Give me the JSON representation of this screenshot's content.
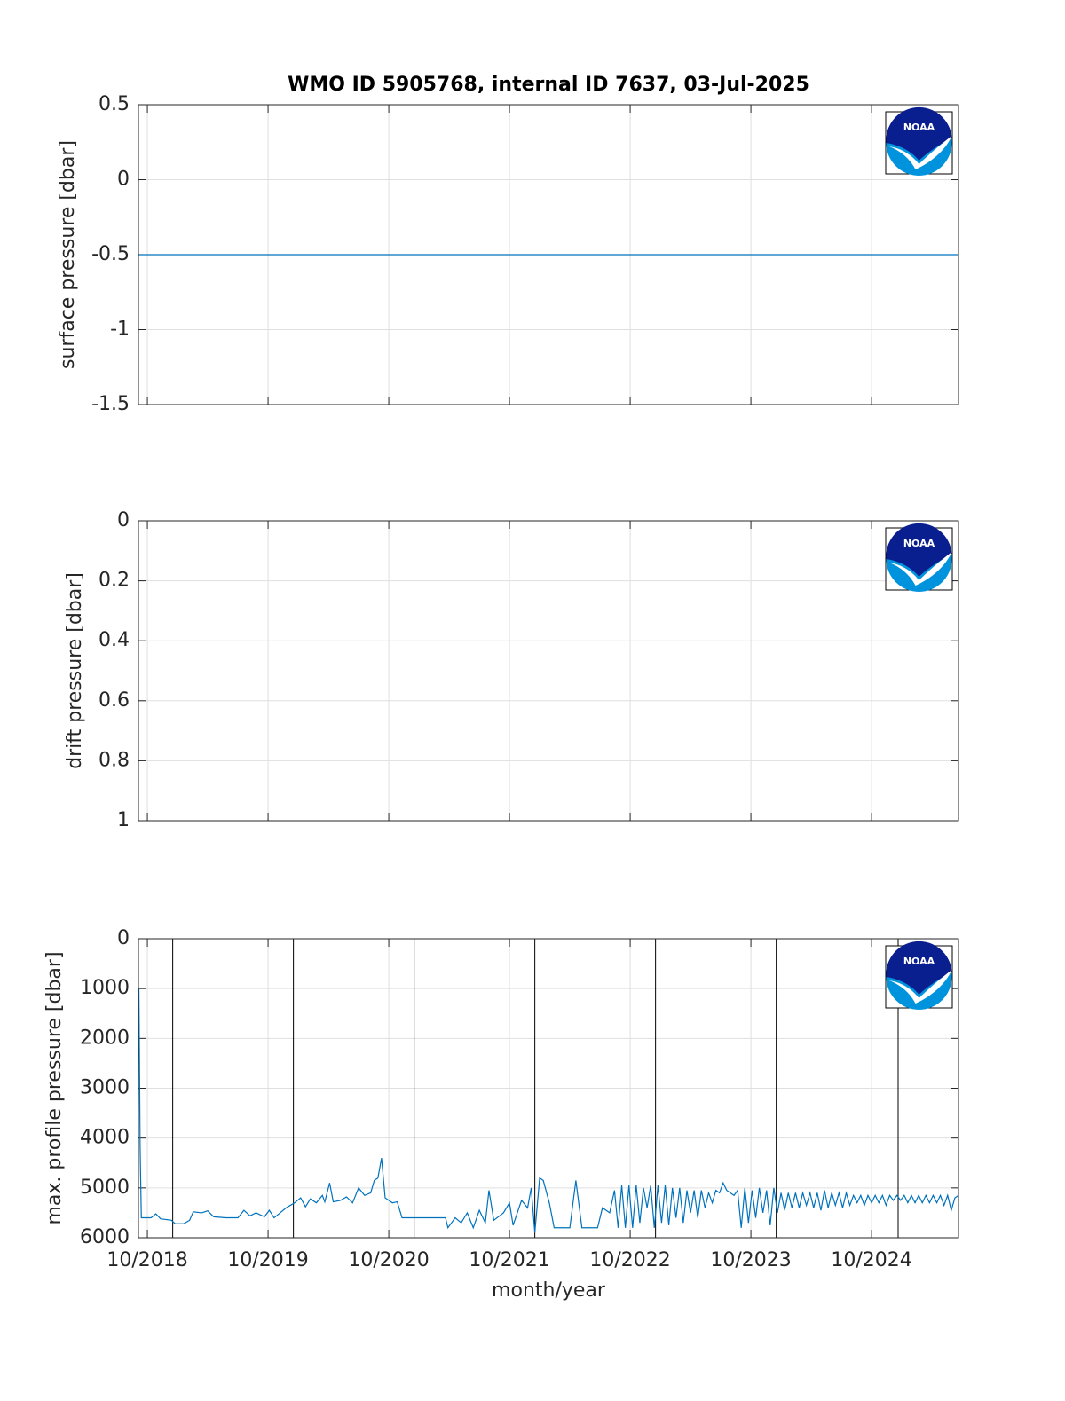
{
  "logo": "NOAA",
  "chart_data": [
    {
      "type": "line",
      "title": "WMO ID 5905768, internal ID 7637, 03-Jul-2025",
      "ylabel": "surface pressure [dbar]",
      "x": [
        2018.68,
        2025.47
      ],
      "values": [
        -0.5,
        -0.5
      ],
      "color": "#0072bd",
      "xlim": [
        2018.676,
        2025.47
      ],
      "xticks": [
        2018.75,
        2019.75,
        2020.75,
        2021.75,
        2022.75,
        2023.75,
        2024.75
      ],
      "ylim": [
        -1.5,
        0.5
      ],
      "yticks": [
        -1.5,
        -1,
        -0.5,
        0,
        0.5
      ],
      "y_reversed": false,
      "grid": true
    },
    {
      "type": "line",
      "ylabel": "drift pressure [dbar]",
      "x": [],
      "values": [],
      "color": "#0072bd",
      "xlim": [
        2018.676,
        2025.47
      ],
      "xticks": [
        2018.75,
        2019.75,
        2020.75,
        2021.75,
        2022.75,
        2023.75,
        2024.75
      ],
      "ylim": [
        0,
        1
      ],
      "yticks": [
        0,
        0.2,
        0.4,
        0.6,
        0.8,
        1
      ],
      "y_reversed": true,
      "grid": true
    },
    {
      "type": "line",
      "ylabel": "max. profile pressure [dbar]",
      "xlabel": "month/year",
      "color": "#0072bd",
      "vline_color": "#000000",
      "vlines": [
        2018.96,
        2019.96,
        2020.96,
        2021.96,
        2022.96,
        2023.96,
        2024.97
      ],
      "x": [
        2018.68,
        2018.69,
        2018.7,
        2018.78,
        2018.82,
        2018.86,
        2018.95,
        2018.98,
        2019.05,
        2019.1,
        2019.13,
        2019.2,
        2019.25,
        2019.3,
        2019.4,
        2019.5,
        2019.55,
        2019.6,
        2019.65,
        2019.72,
        2019.76,
        2019.8,
        2019.85,
        2019.9,
        2019.97,
        2020.02,
        2020.06,
        2020.1,
        2020.15,
        2020.2,
        2020.22,
        2020.26,
        2020.29,
        2020.35,
        2020.4,
        2020.45,
        2020.5,
        2020.55,
        2020.6,
        2020.63,
        2020.66,
        2020.69,
        2020.72,
        2020.78,
        2020.82,
        2020.86,
        2021.0,
        2021.1,
        2021.22,
        2021.24,
        2021.3,
        2021.35,
        2021.4,
        2021.45,
        2021.5,
        2021.55,
        2021.58,
        2021.62,
        2021.7,
        2021.75,
        2021.78,
        2021.85,
        2021.9,
        2021.93,
        2021.96,
        2022.0,
        2022.03,
        2022.08,
        2022.12,
        2022.25,
        2022.3,
        2022.35,
        2022.48,
        2022.52,
        2022.58,
        2022.62,
        2022.65,
        2022.68,
        2022.71,
        2022.74,
        2022.77,
        2022.8,
        2022.83,
        2022.86,
        2022.89,
        2022.92,
        2022.95,
        2022.98,
        2023.01,
        2023.04,
        2023.07,
        2023.1,
        2023.13,
        2023.16,
        2023.19,
        2023.22,
        2023.25,
        2023.28,
        2023.31,
        2023.34,
        2023.37,
        2023.4,
        2023.43,
        2023.46,
        2023.49,
        2023.52,
        2023.55,
        2023.58,
        2023.61,
        2023.64,
        2023.67,
        2023.7,
        2023.73,
        2023.76,
        2023.79,
        2023.82,
        2023.85,
        2023.88,
        2023.91,
        2023.94,
        2023.97,
        2024.0,
        2024.03,
        2024.06,
        2024.09,
        2024.12,
        2024.15,
        2024.18,
        2024.21,
        2024.24,
        2024.27,
        2024.3,
        2024.33,
        2024.36,
        2024.39,
        2024.42,
        2024.45,
        2024.48,
        2024.51,
        2024.54,
        2024.57,
        2024.6,
        2024.63,
        2024.66,
        2024.69,
        2024.72,
        2024.75,
        2024.78,
        2024.81,
        2024.84,
        2024.87,
        2024.9,
        2024.93,
        2024.96,
        2024.99,
        2025.02,
        2025.05,
        2025.08,
        2025.11,
        2025.14,
        2025.17,
        2025.2,
        2025.23,
        2025.26,
        2025.29,
        2025.32,
        2025.35,
        2025.38,
        2025.41,
        2025.44,
        2025.47
      ],
      "values": [
        1000,
        4200,
        5600,
        5600,
        5520,
        5620,
        5650,
        5720,
        5720,
        5650,
        5480,
        5500,
        5460,
        5580,
        5600,
        5600,
        5450,
        5560,
        5500,
        5580,
        5450,
        5600,
        5500,
        5400,
        5300,
        5200,
        5380,
        5220,
        5300,
        5150,
        5280,
        4900,
        5280,
        5250,
        5180,
        5300,
        5000,
        5150,
        5100,
        4850,
        4800,
        4400,
        5200,
        5300,
        5280,
        5600,
        5600,
        5600,
        5600,
        5800,
        5600,
        5700,
        5500,
        5800,
        5450,
        5700,
        5050,
        5650,
        5500,
        5300,
        5750,
        5250,
        5400,
        5000,
        5900,
        4800,
        4850,
        5300,
        5800,
        5800,
        4850,
        5800,
        5800,
        5400,
        5500,
        5050,
        5800,
        4950,
        5800,
        4950,
        5800,
        4950,
        5700,
        5000,
        5400,
        4950,
        5800,
        4950,
        5700,
        4950,
        5750,
        5000,
        5600,
        5000,
        5700,
        5050,
        5500,
        5050,
        5600,
        5050,
        5400,
        5100,
        5300,
        5050,
        5100,
        4900,
        5050,
        5100,
        5150,
        5050,
        5800,
        5000,
        5700,
        5050,
        5600,
        5000,
        5500,
        5050,
        5750,
        5000,
        5500,
        5100,
        5450,
        5100,
        5400,
        5100,
        5400,
        5100,
        5350,
        5100,
        5400,
        5100,
        5450,
        5050,
        5400,
        5100,
        5350,
        5100,
        5400,
        5100,
        5350,
        5150,
        5300,
        5150,
        5350,
        5150,
        5300,
        5150,
        5300,
        5150,
        5350,
        5150,
        5250,
        5150,
        5250,
        5150,
        5300,
        5150,
        5300,
        5150,
        5300,
        5150,
        5300,
        5150,
        5300,
        5150,
        5350,
        5150,
        5450,
        5200,
        5150
      ],
      "xlim": [
        2018.676,
        2025.47
      ],
      "xticks": [
        {
          "value": 2018.75,
          "label": "10/2018"
        },
        {
          "value": 2019.75,
          "label": "10/2019"
        },
        {
          "value": 2020.75,
          "label": "10/2020"
        },
        {
          "value": 2021.75,
          "label": "10/2021"
        },
        {
          "value": 2022.75,
          "label": "10/2022"
        },
        {
          "value": 2023.75,
          "label": "10/2023"
        },
        {
          "value": 2024.75,
          "label": "10/2024"
        }
      ],
      "ylim": [
        0,
        6000
      ],
      "yticks": [
        0,
        1000,
        2000,
        3000,
        4000,
        5000,
        6000
      ],
      "y_reversed": true,
      "grid": true
    }
  ]
}
